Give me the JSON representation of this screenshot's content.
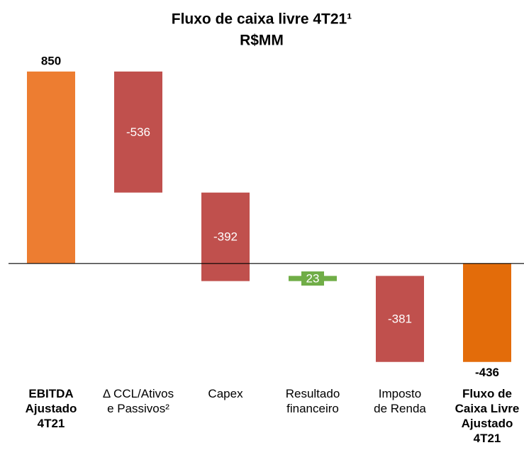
{
  "chart_data": {
    "type": "waterfall",
    "title": "Fluxo de caixa livre 4T21¹",
    "subtitle": "R$MM",
    "categories": [
      "EBITDA\nAjustado\n4T21",
      "Δ  CCL/Ativos\ne Passivos²",
      "Capex",
      "Resultado\nfinanceiro",
      "Imposto\nde Renda",
      "Fluxo de\nCaixa Livre\nAjustado\n4T21"
    ],
    "values": [
      850,
      -536,
      -392,
      23,
      -381,
      -436
    ],
    "measure": [
      "absolute",
      "relative",
      "relative",
      "relative",
      "relative",
      "total"
    ],
    "colors": [
      "#ED7D31",
      "#C0504D",
      "#C0504D",
      "#70AD47",
      "#C0504D",
      "#E36C0A"
    ],
    "ylim": [
      -600,
      900
    ]
  }
}
